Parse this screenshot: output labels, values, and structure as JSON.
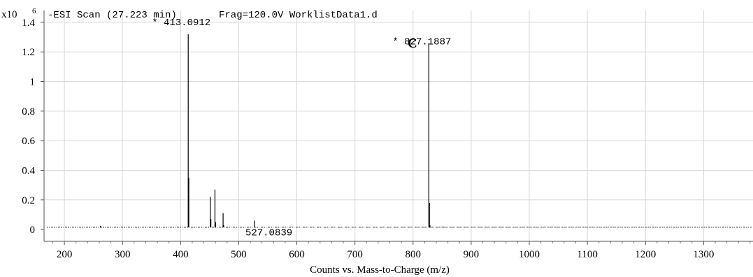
{
  "chart_data": {
    "type": "line",
    "panel_label": "C",
    "header": {
      "multiplier_prefix": "x10",
      "multiplier_exp": "6",
      "scan_info": "-ESI Scan (27.223 min)",
      "frag_info": "Frag=120.0V WorklistData1.d"
    },
    "xlabel": "Counts vs. Mass-to-Charge (m/z)",
    "xlim": [
      165,
      1385
    ],
    "ylim": [
      -0.08,
      1.48
    ],
    "x_ticks": [
      200,
      300,
      400,
      500,
      600,
      700,
      800,
      900,
      1000,
      1100,
      1200,
      1300
    ],
    "x_tick_labels": [
      "200",
      "300",
      "400",
      "500",
      "600",
      "700",
      "800",
      "900",
      "1000",
      "1100",
      "1200",
      "1300"
    ],
    "y_ticks": [
      0,
      0.2,
      0.4,
      0.6,
      0.8,
      1.0,
      1.2,
      1.4
    ],
    "y_tick_labels": [
      "0",
      "0.2",
      "0.4",
      "0.6",
      "0.8",
      "1",
      "1.2",
      "1.4"
    ],
    "baseline": 0.015,
    "grid": true,
    "peaks": [
      {
        "mz": 413.0912,
        "intensity": 1.32,
        "label": "* 413.0912"
      },
      {
        "mz": 414.09,
        "intensity": 0.35
      },
      {
        "mz": 451.1,
        "intensity": 0.22
      },
      {
        "mz": 452.1,
        "intensity": 0.07
      },
      {
        "mz": 459.1,
        "intensity": 0.27
      },
      {
        "mz": 460.1,
        "intensity": 0.05
      },
      {
        "mz": 473.1,
        "intensity": 0.11
      },
      {
        "mz": 474.1,
        "intensity": 0.03
      },
      {
        "mz": 527.0839,
        "intensity": 0.06,
        "label": "527.0839"
      },
      {
        "mz": 262.0,
        "intensity": 0.025
      },
      {
        "mz": 827.1887,
        "intensity": 1.26,
        "label": "* 827.1887"
      },
      {
        "mz": 828.19,
        "intensity": 0.18
      },
      {
        "mz": 829.19,
        "intensity": 0.03
      },
      {
        "mz": 850.0,
        "intensity": 0.02
      }
    ]
  }
}
